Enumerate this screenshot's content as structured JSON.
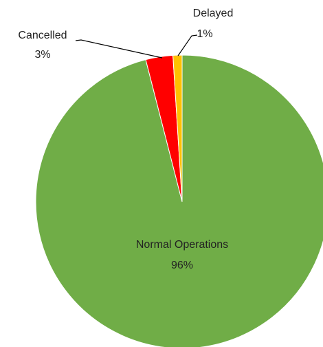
{
  "chart_data": {
    "type": "pie",
    "categories": [
      "Normal Operations",
      "Cancelled",
      "Delayed"
    ],
    "values": [
      96,
      3,
      1
    ],
    "value_labels": [
      "96%",
      "3%",
      "1%"
    ],
    "colors": [
      "#70ad47",
      "#ff0000",
      "#ffc000"
    ]
  }
}
